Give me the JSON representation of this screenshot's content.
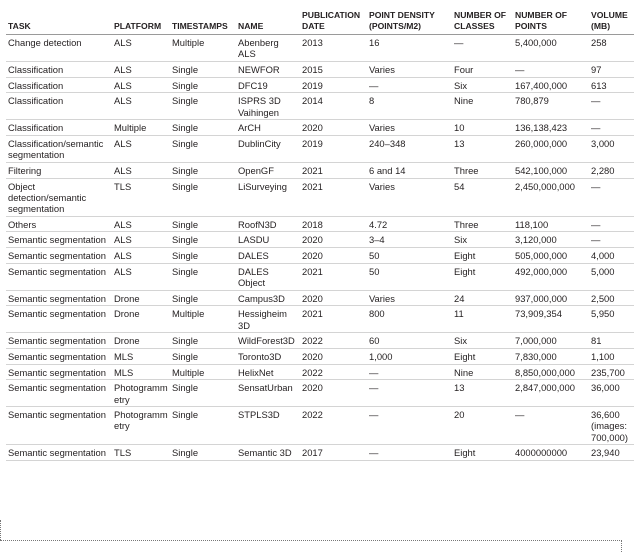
{
  "table": {
    "header": [
      "TASK",
      "PLATFORM",
      "TIMESTAMPS",
      "NAME",
      "PUBLICATION DATE",
      "POINT DENSITY (POINTS/M2)",
      "NUMBER OF CLASSES",
      "NUMBER OF POINTS",
      "VOLUME (MB)"
    ],
    "rows": [
      [
        "Change detection",
        "ALS",
        "Multiple",
        "Abenberg ALS",
        "2013",
        "16",
        "—",
        "5,400,000",
        "258"
      ],
      [
        "Classification",
        "ALS",
        "Single",
        "NEWFOR",
        "2015",
        "Varies",
        "Four",
        "—",
        "97"
      ],
      [
        "Classification",
        "ALS",
        "Single",
        "DFC19",
        "2019",
        "—",
        "Six",
        "167,400,000",
        "613"
      ],
      [
        "Classification",
        "ALS",
        "Single",
        "ISPRS 3D Vaihingen",
        "2014",
        "8",
        "Nine",
        "780,879",
        "—"
      ],
      [
        "Classification",
        "Multiple",
        "Single",
        "ArCH",
        "2020",
        "Varies",
        "10",
        "136,138,423",
        "—"
      ],
      [
        "Classification/semantic segmentation",
        "ALS",
        "Single",
        "DublinCity",
        "2019",
        "240–348",
        "13",
        "260,000,000",
        "3,000"
      ],
      [
        "Filtering",
        "ALS",
        "Single",
        "OpenGF",
        "2021",
        "6 and 14",
        "Three",
        "542,100,000",
        "2,280"
      ],
      [
        "Object detection/semantic segmentation",
        "TLS",
        "Single",
        "LiSurveying",
        "2021",
        "Varies",
        "54",
        "2,450,000,000",
        "—"
      ],
      [
        "Others",
        "ALS",
        "Single",
        "RoofN3D",
        "2018",
        "4.72",
        "Three",
        "118,100",
        "—"
      ],
      [
        "Semantic segmentation",
        "ALS",
        "Single",
        "LASDU",
        "2020",
        "3–4",
        "Six",
        "3,120,000",
        "—"
      ],
      [
        "Semantic segmentation",
        "ALS",
        "Single",
        "DALES",
        "2020",
        "50",
        "Eight",
        "505,000,000",
        "4,000"
      ],
      [
        "Semantic segmentation",
        "ALS",
        "Single",
        "DALES Object",
        "2021",
        "50",
        "Eight",
        "492,000,000",
        "5,000"
      ],
      [
        "Semantic segmentation",
        "Drone",
        "Single",
        "Campus3D",
        "2020",
        "Varies",
        "24",
        "937,000,000",
        "2,500"
      ],
      [
        "Semantic segmentation",
        "Drone",
        "Multiple",
        "Hessigheim 3D",
        "2021",
        "800",
        "11",
        "73,909,354",
        "5,950"
      ],
      [
        "Semantic segmentation",
        "Drone",
        "Single",
        "WildForest3D",
        "2022",
        "60",
        "Six",
        "7,000,000",
        "81"
      ],
      [
        "Semantic segmentation",
        "MLS",
        "Single",
        "Toronto3D",
        "2020",
        "1,000",
        "Eight",
        "7,830,000",
        "1,100"
      ],
      [
        "Semantic segmentation",
        "MLS",
        "Multiple",
        "HelixNet",
        "2022",
        "—",
        "Nine",
        "8,850,000,000",
        "235,700"
      ],
      [
        "Semantic segmentation",
        "Photogrammetry",
        "Single",
        "SensatUrban",
        "2020",
        "—",
        "13",
        "2,847,000,000",
        "36,000"
      ],
      [
        "Semantic segmentation",
        "Photogrammetry",
        "Single",
        "STPLS3D",
        "2022",
        "—",
        "20",
        "—",
        "36,600 (images: 700,000)"
      ],
      [
        "Semantic segmentation",
        "TLS",
        "Single",
        "Semantic 3D",
        "2017",
        "—",
        "Eight",
        "4000000000",
        "23,940"
      ]
    ]
  }
}
